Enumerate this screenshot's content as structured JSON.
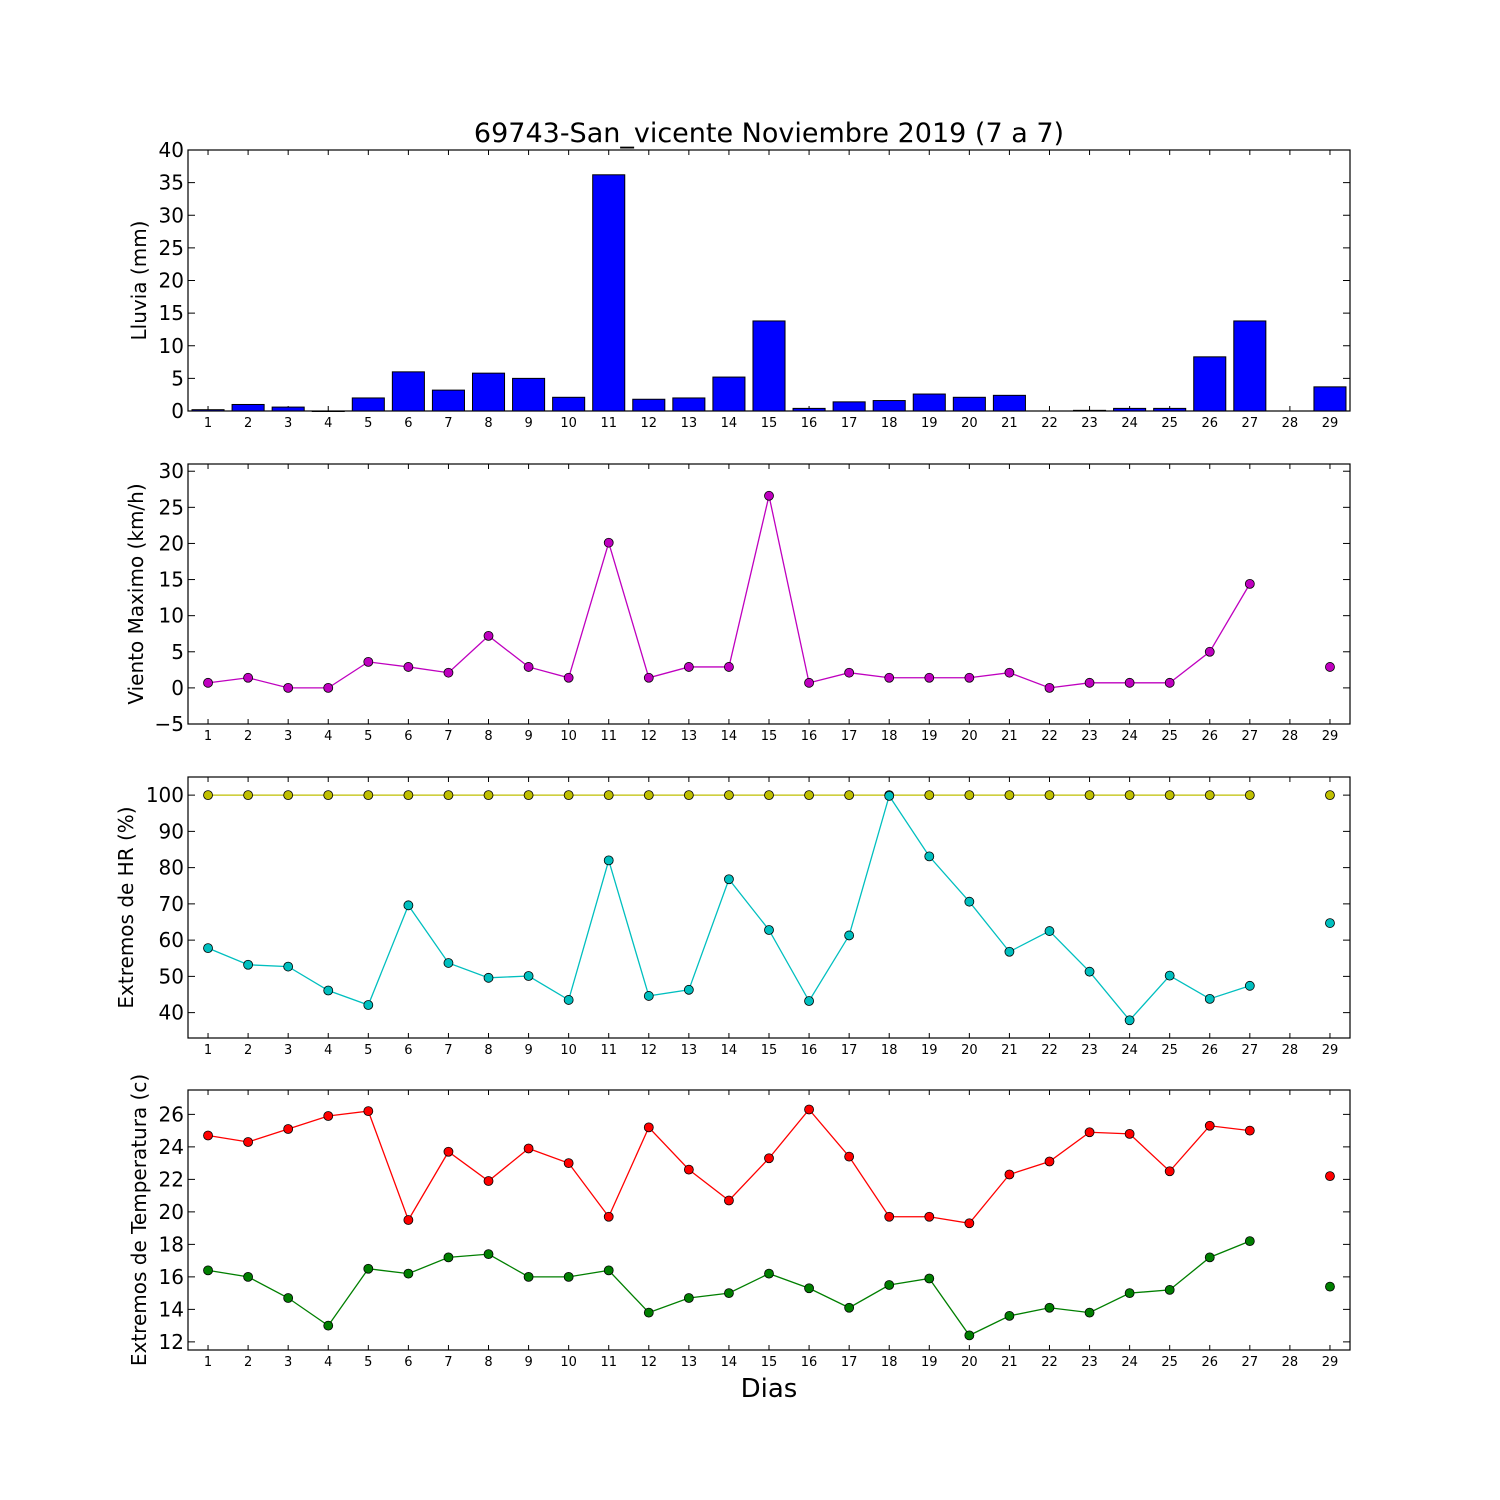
{
  "figure": {
    "title": "69743-San_vicente Noviembre 2019  (7 a 7)",
    "xlabel": "Dias"
  },
  "chart_data": [
    {
      "type": "bar",
      "ylabel": "Lluvia (mm)",
      "categories": [
        "1",
        "2",
        "3",
        "4",
        "5",
        "6",
        "7",
        "8",
        "9",
        "10",
        "11",
        "12",
        "13",
        "14",
        "15",
        "16",
        "17",
        "18",
        "19",
        "20",
        "21",
        "22",
        "23",
        "24",
        "25",
        "26",
        "27",
        "28",
        "29"
      ],
      "ylim": [
        0,
        40
      ],
      "yticks": [
        0,
        5,
        10,
        15,
        20,
        25,
        30,
        35,
        40
      ],
      "series": [
        {
          "color": "#0000ff",
          "values": [
            0.2,
            1.0,
            0.6,
            0,
            2.0,
            6.0,
            3.2,
            5.8,
            5.0,
            2.1,
            36.2,
            1.8,
            2.0,
            5.2,
            13.8,
            0.4,
            1.4,
            1.6,
            2.6,
            2.1,
            2.4,
            null,
            0.1,
            0.4,
            0.4,
            8.3,
            13.8,
            null,
            3.7
          ]
        }
      ]
    },
    {
      "type": "line",
      "ylabel": "Viento Maximo (km/h)",
      "categories": [
        "1",
        "2",
        "3",
        "4",
        "5",
        "6",
        "7",
        "8",
        "9",
        "10",
        "11",
        "12",
        "13",
        "14",
        "15",
        "16",
        "17",
        "18",
        "19",
        "20",
        "21",
        "22",
        "23",
        "24",
        "25",
        "26",
        "27",
        "28",
        "29"
      ],
      "ylim": [
        -5,
        31
      ],
      "yticks": [
        -5,
        0,
        5,
        10,
        15,
        20,
        25,
        30
      ],
      "series": [
        {
          "color": "#bf00bf",
          "values": [
            0.7,
            1.4,
            0,
            0,
            3.6,
            2.9,
            2.1,
            7.2,
            2.9,
            1.4,
            20.1,
            1.4,
            2.9,
            2.9,
            26.6,
            0.7,
            2.1,
            1.4,
            1.4,
            1.4,
            2.1,
            0,
            0.7,
            0.7,
            0.7,
            5.0,
            14.4,
            null,
            2.9
          ]
        }
      ]
    },
    {
      "type": "line",
      "ylabel": "Extremos de HR (%)",
      "categories": [
        "1",
        "2",
        "3",
        "4",
        "5",
        "6",
        "7",
        "8",
        "9",
        "10",
        "11",
        "12",
        "13",
        "14",
        "15",
        "16",
        "17",
        "18",
        "19",
        "20",
        "21",
        "22",
        "23",
        "24",
        "25",
        "26",
        "27",
        "28",
        "29"
      ],
      "ylim": [
        33,
        105
      ],
      "yticks": [
        40,
        50,
        60,
        70,
        80,
        90,
        100
      ],
      "series": [
        {
          "color": "#bfbf00",
          "values": [
            100,
            100,
            100,
            100,
            100,
            100,
            100,
            100,
            100,
            100,
            100,
            100,
            100,
            100,
            100,
            100,
            100,
            100,
            100,
            100,
            100,
            100,
            100,
            100,
            100,
            100,
            100,
            null,
            100
          ]
        },
        {
          "color": "#00bfbf",
          "values": [
            57.8,
            53.2,
            52.7,
            46.1,
            42.1,
            69.6,
            53.7,
            49.6,
            50.1,
            43.5,
            82.0,
            44.6,
            46.3,
            76.8,
            62.8,
            43.2,
            61.3,
            99.8,
            83.1,
            70.6,
            56.8,
            62.5,
            51.3,
            37.9,
            50.2,
            43.8,
            47.4,
            null,
            64.7
          ]
        }
      ]
    },
    {
      "type": "line",
      "ylabel": "Extremos de Temperatura (c)",
      "categories": [
        "1",
        "2",
        "3",
        "4",
        "5",
        "6",
        "7",
        "8",
        "9",
        "10",
        "11",
        "12",
        "13",
        "14",
        "15",
        "16",
        "17",
        "18",
        "19",
        "20",
        "21",
        "22",
        "23",
        "24",
        "25",
        "26",
        "27",
        "28",
        "29"
      ],
      "ylim": [
        11.5,
        27.5
      ],
      "yticks": [
        12,
        14,
        16,
        18,
        20,
        22,
        24,
        26
      ],
      "series": [
        {
          "color": "#ff0000",
          "values": [
            24.7,
            24.3,
            25.1,
            25.9,
            26.2,
            19.5,
            23.7,
            21.9,
            23.9,
            23.0,
            19.7,
            25.2,
            22.6,
            20.7,
            23.3,
            26.3,
            23.4,
            19.7,
            19.7,
            19.3,
            22.3,
            23.1,
            24.9,
            24.8,
            22.5,
            25.3,
            25.0,
            null,
            22.2
          ]
        },
        {
          "color": "#007f00",
          "values": [
            16.4,
            16.0,
            14.7,
            13.0,
            16.5,
            16.2,
            17.2,
            17.4,
            16.0,
            16.0,
            16.4,
            13.8,
            14.7,
            15.0,
            16.2,
            15.3,
            14.1,
            15.5,
            15.9,
            12.4,
            13.6,
            14.1,
            13.8,
            15.0,
            15.2,
            17.2,
            18.2,
            null,
            15.4
          ]
        }
      ]
    }
  ]
}
